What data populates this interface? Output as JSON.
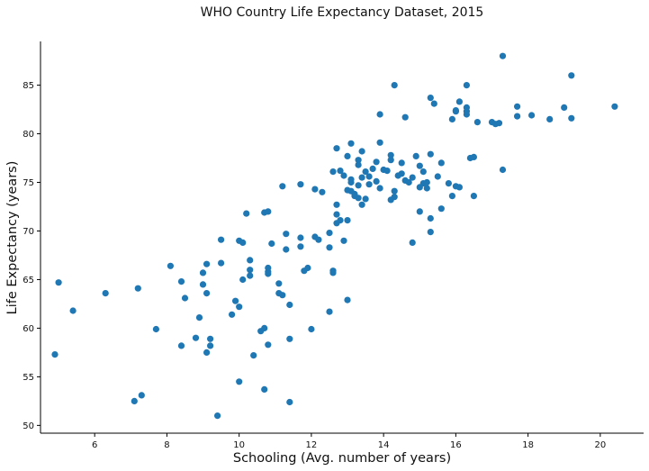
{
  "chart_data": {
    "type": "scatter",
    "title": "WHO Country Life Expectancy Dataset, 2015",
    "xlabel": "Schooling (Avg. number of years)",
    "ylabel": "Life Expectancy (years)",
    "xlim": [
      4.5,
      21.2
    ],
    "ylim": [
      49.2,
      89.5
    ],
    "xticks": [
      6,
      8,
      10,
      12,
      14,
      16,
      18,
      20
    ],
    "yticks": [
      50,
      55,
      60,
      65,
      70,
      75,
      80,
      85
    ],
    "grid": false,
    "legend": "none",
    "marker_color": "#1f77b4",
    "x": [
      4.9,
      5.0,
      5.4,
      6.3,
      7.2,
      7.1,
      7.3,
      7.7,
      8.1,
      8.4,
      8.4,
      8.5,
      8.8,
      8.9,
      9.0,
      9.0,
      9.1,
      9.1,
      9.1,
      9.2,
      9.2,
      9.4,
      9.5,
      9.5,
      9.8,
      9.9,
      10.0,
      10.0,
      10.0,
      10.1,
      10.1,
      10.2,
      10.3,
      10.3,
      10.3,
      10.4,
      10.6,
      10.7,
      10.7,
      10.7,
      10.8,
      10.8,
      10.8,
      10.8,
      10.8,
      10.9,
      11.1,
      11.1,
      11.2,
      11.2,
      11.3,
      11.4,
      11.4,
      11.4,
      11.7,
      11.7,
      11.7,
      11.8,
      11.9,
      12.0,
      12.1,
      12.1,
      12.2,
      12.3,
      12.5,
      12.5,
      12.5,
      12.6,
      12.6,
      12.6,
      12.7,
      12.7,
      12.7,
      12.7,
      12.8,
      12.8,
      12.9,
      12.9,
      13.0,
      13.0,
      13.0,
      13.0,
      13.1,
      13.1,
      13.1,
      13.1,
      13.2,
      13.2,
      13.3,
      13.3,
      13.3,
      13.3,
      13.4,
      13.4,
      13.4,
      13.5,
      13.5,
      13.6,
      13.7,
      13.8,
      13.8,
      13.9,
      13.9,
      13.9,
      14.0,
      14.1,
      14.2,
      14.2,
      14.2,
      14.3,
      14.3,
      14.3,
      14.4,
      14.5,
      14.5,
      14.6,
      14.6,
      14.7,
      14.8,
      14.8,
      14.9,
      15.0,
      15.0,
      15.0,
      15.1,
      15.1,
      15.2,
      15.2,
      15.3,
      15.3,
      15.3,
      15.3,
      15.4,
      15.5,
      15.6,
      15.6,
      15.8,
      15.9,
      15.9,
      16.0,
      16.0,
      16.0,
      16.1,
      16.1,
      16.3,
      16.3,
      16.3,
      16.3,
      16.4,
      16.5,
      16.5,
      16.6,
      17.0,
      17.1,
      17.2,
      17.3,
      17.3,
      17.7,
      17.7,
      18.1,
      18.6,
      19.0,
      19.2,
      19.2,
      20.4,
      13.6,
      11.3
    ],
    "y": [
      57.3,
      64.7,
      61.8,
      63.6,
      64.1,
      52.5,
      53.1,
      59.9,
      66.4,
      64.8,
      58.2,
      63.1,
      59.0,
      61.1,
      65.7,
      64.5,
      66.6,
      63.6,
      57.5,
      58.9,
      58.2,
      51.0,
      66.7,
      69.1,
      61.4,
      62.8,
      62.2,
      54.5,
      69.0,
      68.8,
      65.0,
      71.8,
      67.0,
      66.0,
      65.4,
      57.2,
      59.7,
      53.7,
      60.0,
      71.9,
      66.2,
      65.8,
      65.6,
      58.3,
      72.0,
      68.7,
      64.6,
      63.6,
      63.4,
      74.6,
      69.7,
      62.4,
      58.9,
      52.4,
      69.3,
      74.8,
      68.4,
      65.9,
      66.2,
      59.9,
      74.3,
      69.4,
      69.1,
      74.0,
      68.3,
      69.8,
      61.7,
      65.9,
      65.7,
      76.1,
      70.8,
      72.7,
      71.7,
      78.5,
      76.2,
      71.1,
      75.7,
      69.0,
      71.1,
      77.7,
      62.9,
      74.2,
      75.0,
      75.3,
      79.0,
      74.1,
      73.6,
      73.8,
      77.3,
      76.8,
      74.7,
      73.4,
      78.2,
      75.5,
      72.7,
      76.1,
      73.3,
      74.8,
      76.4,
      77.1,
      75.1,
      74.4,
      79.1,
      82.0,
      76.3,
      76.2,
      77.3,
      73.2,
      77.8,
      73.5,
      74.1,
      85.0,
      75.7,
      77.0,
      75.9,
      75.2,
      81.7,
      75.0,
      75.5,
      68.8,
      77.7,
      76.7,
      74.5,
      72.0,
      74.9,
      76.1,
      74.4,
      75.0,
      83.7,
      71.3,
      69.9,
      77.9,
      83.1,
      75.6,
      77.0,
      72.3,
      74.9,
      73.6,
      81.5,
      82.3,
      74.6,
      82.4,
      83.3,
      74.5,
      82.0,
      85.0,
      82.7,
      82.3,
      77.5,
      77.6,
      73.6,
      81.2,
      81.2,
      81.0,
      81.1,
      88.0,
      76.3,
      82.8,
      81.8,
      81.9,
      81.5,
      82.7,
      86.0,
      81.6,
      82.8,
      75.6,
      68.1
    ]
  }
}
